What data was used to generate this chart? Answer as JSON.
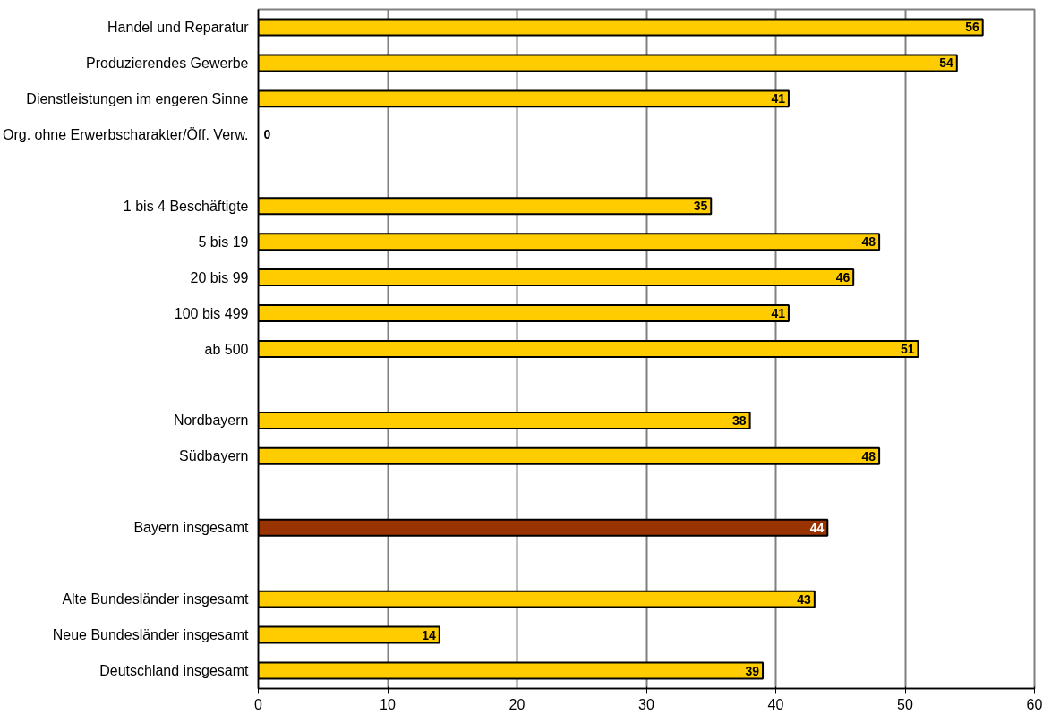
{
  "chart_data": {
    "type": "bar",
    "orientation": "horizontal",
    "categories": [
      "Handel und Reparatur",
      "Produzierendes Gewerbe",
      "Dienstleistungen im engeren Sinne",
      "Org. ohne Erwerbscharakter/Öff. Verw.",
      null,
      "1 bis 4 Beschäftigte",
      "5 bis 19",
      "20 bis 99",
      "100 bis 499",
      "ab 500",
      null,
      "Nordbayern",
      "Südbayern",
      null,
      "Bayern insgesamt",
      null,
      "Alte Bundesländer insgesamt",
      "Neue Bundesländer insgesamt",
      "Deutschland insgesamt"
    ],
    "values": [
      56,
      54,
      41,
      0,
      null,
      35,
      48,
      46,
      41,
      51,
      null,
      38,
      48,
      null,
      44,
      null,
      43,
      14,
      39
    ],
    "colors": [
      "#ffcc00",
      "#ffcc00",
      "#ffcc00",
      "#ffcc00",
      "#ffcc00",
      "#ffcc00",
      "#ffcc00",
      "#ffcc00",
      "#ffcc00",
      "#ffcc00",
      "#ffcc00",
      "#ffcc00",
      "#ffcc00",
      "#ffcc00",
      "#993300",
      "#ffcc00",
      "#ffcc00",
      "#ffcc00",
      "#ffcc00"
    ],
    "xlim": [
      0,
      60
    ],
    "xticks": [
      0,
      10,
      20,
      30,
      40,
      50,
      60
    ],
    "grid": "x",
    "data_labels": true
  }
}
